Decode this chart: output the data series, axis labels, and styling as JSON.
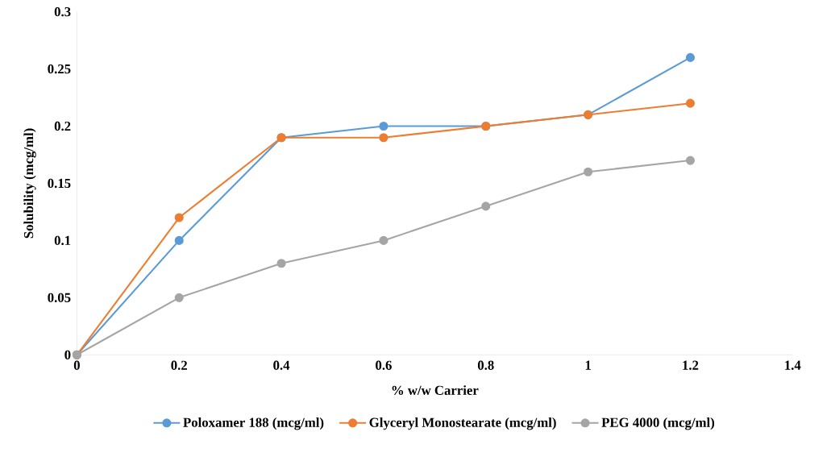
{
  "chart_data": {
    "type": "line",
    "xlabel": "% w/w Carrier",
    "ylabel": "Solubility  (mcg/ml)",
    "x": [
      0,
      0.2,
      0.4,
      0.6,
      0.8,
      1,
      1.2
    ],
    "series": [
      {
        "name": "Poloxamer 188 (mcg/ml)",
        "color": "#5b9bd5",
        "values": [
          0,
          0.1,
          0.19,
          0.2,
          0.2,
          0.21,
          0.26
        ]
      },
      {
        "name": "Glyceryl Monostearate (mcg/ml)",
        "color": "#ed7d31",
        "values": [
          0,
          0.12,
          0.19,
          0.19,
          0.2,
          0.21,
          0.22
        ]
      },
      {
        "name": "PEG 4000 (mcg/ml)",
        "color": "#a5a5a5",
        "values": [
          0,
          0.05,
          0.08,
          0.1,
          0.13,
          0.16,
          0.17
        ]
      }
    ],
    "xlim": [
      0,
      1.4
    ],
    "xticks": [
      0,
      0.2,
      0.4,
      0.6,
      0.8,
      1,
      1.2,
      1.4
    ],
    "ylim": [
      0,
      0.3
    ],
    "yticks": [
      0,
      0.05,
      0.1,
      0.15,
      0.2,
      0.25,
      0.3
    ],
    "grid": false,
    "legend": "bottom",
    "marker": "circle",
    "line_style": "solid"
  }
}
